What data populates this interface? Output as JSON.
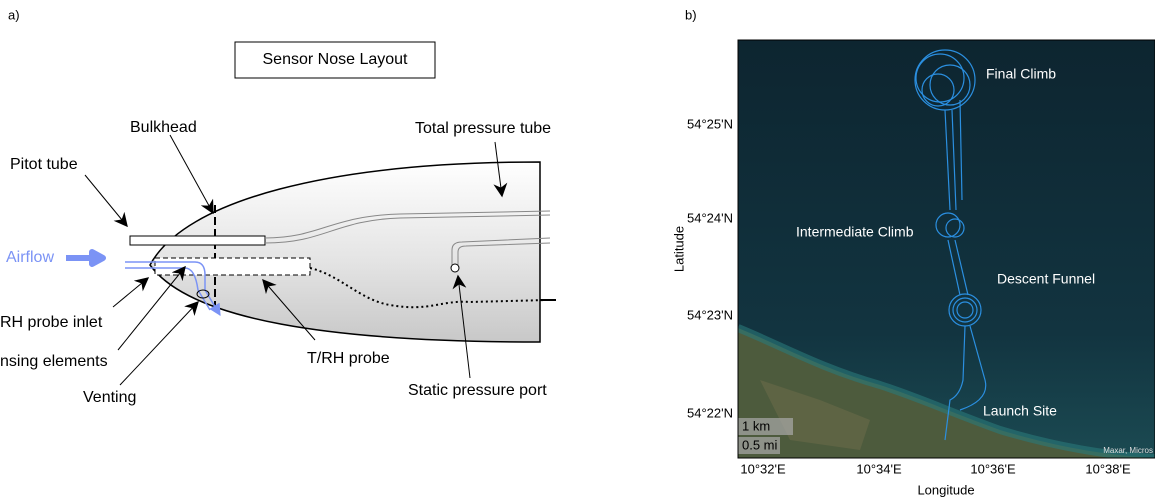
{
  "panel_a": {
    "label": "a)",
    "title": "Sensor Nose Layout",
    "bulkhead": "Bulkhead",
    "total_pressure_tube": "Total pressure tube",
    "pitot_tube": "Pitot tube",
    "airflow": "Airflow",
    "trh_probe_inlet": "RH probe inlet",
    "sensing_elements": "nsing elements",
    "venting": "Venting",
    "trh_probe": "T/RH probe",
    "static_pressure_port": "Static pressure port"
  },
  "panel_b": {
    "label": "b)",
    "final_climb": "Final Climb",
    "intermediate_climb": "Intermediate Climb",
    "descent_funnel": "Descent Funnel",
    "launch_site": "Launch Site",
    "scale_km": "1 km",
    "scale_mi": "0.5 mi",
    "attribution": "Maxar, Micros",
    "ylabel": "Latitude",
    "xlabel": "Longitude",
    "yticks": [
      "54°25'N",
      "54°24'N",
      "54°23'N",
      "54°22'N"
    ],
    "xticks": [
      "10°32'E",
      "10°34'E",
      "10°36'E",
      "10°38'E"
    ]
  }
}
